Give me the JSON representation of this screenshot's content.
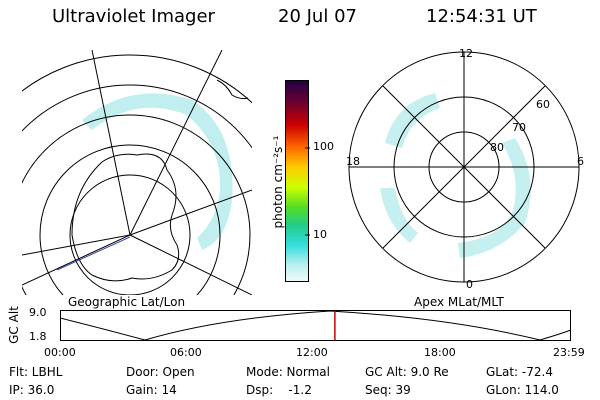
{
  "header": {
    "instrument": "Ultraviolet Imager",
    "date": "20 Jul 07",
    "time": "12:54:31 UT"
  },
  "left_panel": {
    "caption": "Geographic Lat/Lon"
  },
  "right_panel": {
    "caption": "Apex MLat/MLT",
    "mlt_labels": [
      "12",
      "18",
      "6",
      "0"
    ],
    "lat_labels": [
      "60",
      "70",
      "80"
    ]
  },
  "colorbar": {
    "label": "photon cm⁻²s⁻¹",
    "tick_labels": [
      "100",
      "10"
    ]
  },
  "altitude_strip": {
    "ylabel": "GC Alt",
    "ytick_labels": [
      "9.0",
      "1.8"
    ],
    "xtick_labels": [
      "00:00",
      "06:00",
      "12:00",
      "18:00",
      "23:59"
    ],
    "current_time_hours": 12.91
  },
  "status": {
    "flt": "Flt: LBHL",
    "ip": "IP: 36.0",
    "door": "Door: Open",
    "gain": "Gain: 14",
    "mode": "Mode: Normal",
    "dsp": "Dsp:    -1.2",
    "gc_alt": "GC Alt: 9.0 Re",
    "seq": "Seq: 39",
    "glat": "GLat: -72.4",
    "glon": "GLon: 114.0"
  },
  "colors": {
    "line": "#000000",
    "emission": "#8ee0e0",
    "current_time_marker": "#cc0000",
    "ground_track": "#3344aa"
  }
}
